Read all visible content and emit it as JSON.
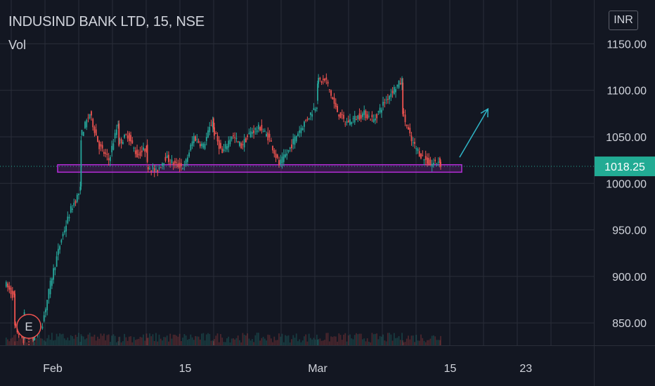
{
  "header": {
    "title": "INDUSIND BANK LTD, 15, NSE",
    "indicator": "Vol",
    "currency": "INR"
  },
  "colors": {
    "background": "#131722",
    "grid": "#2a2e39",
    "up": "#26a69a",
    "down": "#ef5350",
    "zone": "#b62dd9",
    "arrow": "#2fb6c8",
    "last_price_bg": "#22ab94",
    "earnings_marker": "#ef5350"
  },
  "chart_data": {
    "type": "candlestick",
    "symbol": "INDUSIND BANK LTD",
    "interval": "15",
    "exchange": "NSE",
    "y_axis": {
      "ticks": [
        850,
        900,
        950,
        1000,
        1050,
        1100,
        1150
      ],
      "tick_labels": [
        "850.00",
        "900.00",
        "950.00",
        "1000.00",
        "1050.00",
        "1100.00",
        "1150.00"
      ],
      "ylim": [
        826,
        1197
      ]
    },
    "x_axis": {
      "tick_labels": [
        "Feb",
        "15",
        "Mar",
        "15",
        "23"
      ]
    },
    "last_price": 1018.25,
    "last_price_label": "1018.25",
    "price_path": [
      [
        "Jan 27",
        893
      ],
      [
        "Jan 28",
        878
      ],
      [
        "Jan 28",
        846
      ],
      [
        "Jan 29",
        832
      ],
      [
        "Jan 29",
        858
      ],
      [
        "Jan 30",
        833
      ],
      [
        "Jan 30",
        835
      ],
      [
        "Jan 31",
        850
      ],
      [
        "Feb 1",
        900
      ],
      [
        "Feb 2",
        940
      ],
      [
        "Feb 3",
        972
      ],
      [
        "Feb 4",
        993
      ],
      [
        "Feb 4",
        1050
      ],
      [
        "Feb 5",
        1075
      ],
      [
        "Feb 6",
        1040
      ],
      [
        "Feb 7",
        1025
      ],
      [
        "Feb 8",
        1065
      ],
      [
        "Feb 8",
        1043
      ],
      [
        "Feb 9",
        1052
      ],
      [
        "Feb 10",
        1030
      ],
      [
        "Feb 11",
        1038
      ],
      [
        "Feb 11",
        1020
      ],
      [
        "Feb 12",
        1012
      ],
      [
        "Feb 13",
        1028
      ],
      [
        "Feb 14",
        1020
      ],
      [
        "Feb 15",
        1018
      ],
      [
        "Feb 16",
        1050
      ],
      [
        "Feb 17",
        1040
      ],
      [
        "Feb 18",
        1068
      ],
      [
        "Feb 18",
        1058
      ],
      [
        "Feb 19",
        1032
      ],
      [
        "Feb 20",
        1052
      ],
      [
        "Feb 21",
        1040
      ],
      [
        "Feb 22",
        1055
      ],
      [
        "Feb 23",
        1060
      ],
      [
        "Feb 24",
        1048
      ],
      [
        "Feb 25",
        1020
      ],
      [
        "Feb 26",
        1035
      ],
      [
        "Feb 27",
        1055
      ],
      [
        "Feb 28",
        1070
      ],
      [
        "Mar 1",
        1085
      ],
      [
        "Mar 1",
        1110
      ],
      [
        "Mar 2",
        1110
      ],
      [
        "Mar 3",
        1080
      ],
      [
        "Mar 4",
        1065
      ],
      [
        "Mar 5",
        1070
      ],
      [
        "Mar 6",
        1075
      ],
      [
        "Mar 7",
        1068
      ],
      [
        "Mar 8",
        1085
      ],
      [
        "Mar 9",
        1100
      ],
      [
        "Mar 10",
        1110
      ],
      [
        "Mar 10",
        1078
      ],
      [
        "Mar 11",
        1045
      ],
      [
        "Mar 12",
        1030
      ],
      [
        "Mar 13",
        1020
      ],
      [
        "Mar 14",
        1025
      ],
      [
        "Mar 14",
        1018
      ]
    ],
    "annotations": {
      "support_zone": {
        "low": 1012,
        "high": 1020,
        "from": "Feb 1",
        "to": "Mar 16"
      },
      "projection_arrow": {
        "from": [
          "Mar 16",
          1028
        ],
        "to": [
          "Mar 19",
          1080
        ]
      },
      "earnings_marker": {
        "label": "E",
        "date": "Jan 30"
      }
    }
  }
}
